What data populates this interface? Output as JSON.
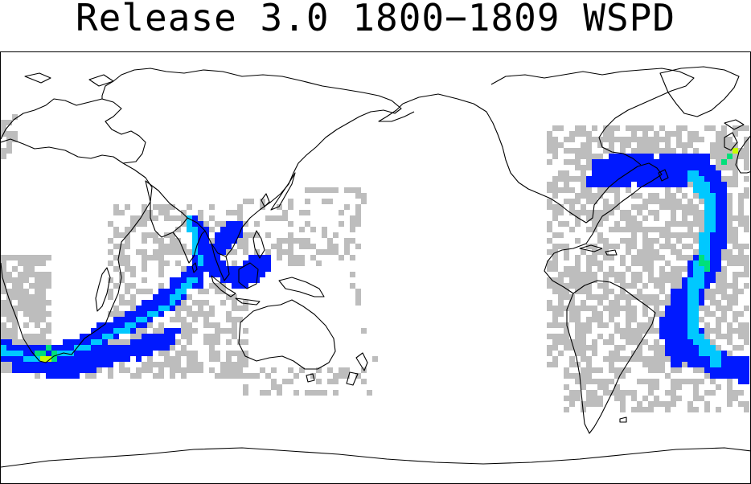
{
  "title": "Release 3.0 1800−1809 WSPD",
  "map": {
    "projection": "cylindrical, Pacific-centred",
    "variable": "WSPD",
    "period": "1800−1809",
    "legend_shown": false,
    "colors": {
      "land_fill": "#ffffff",
      "coastline": "#000000",
      "low_obs": "#bdbdbd",
      "medium_obs": "#0019ff",
      "high_obs": "#00c8ff",
      "very_high_obs": "#00e07a",
      "peak_obs": "#c8ff00"
    }
  }
}
